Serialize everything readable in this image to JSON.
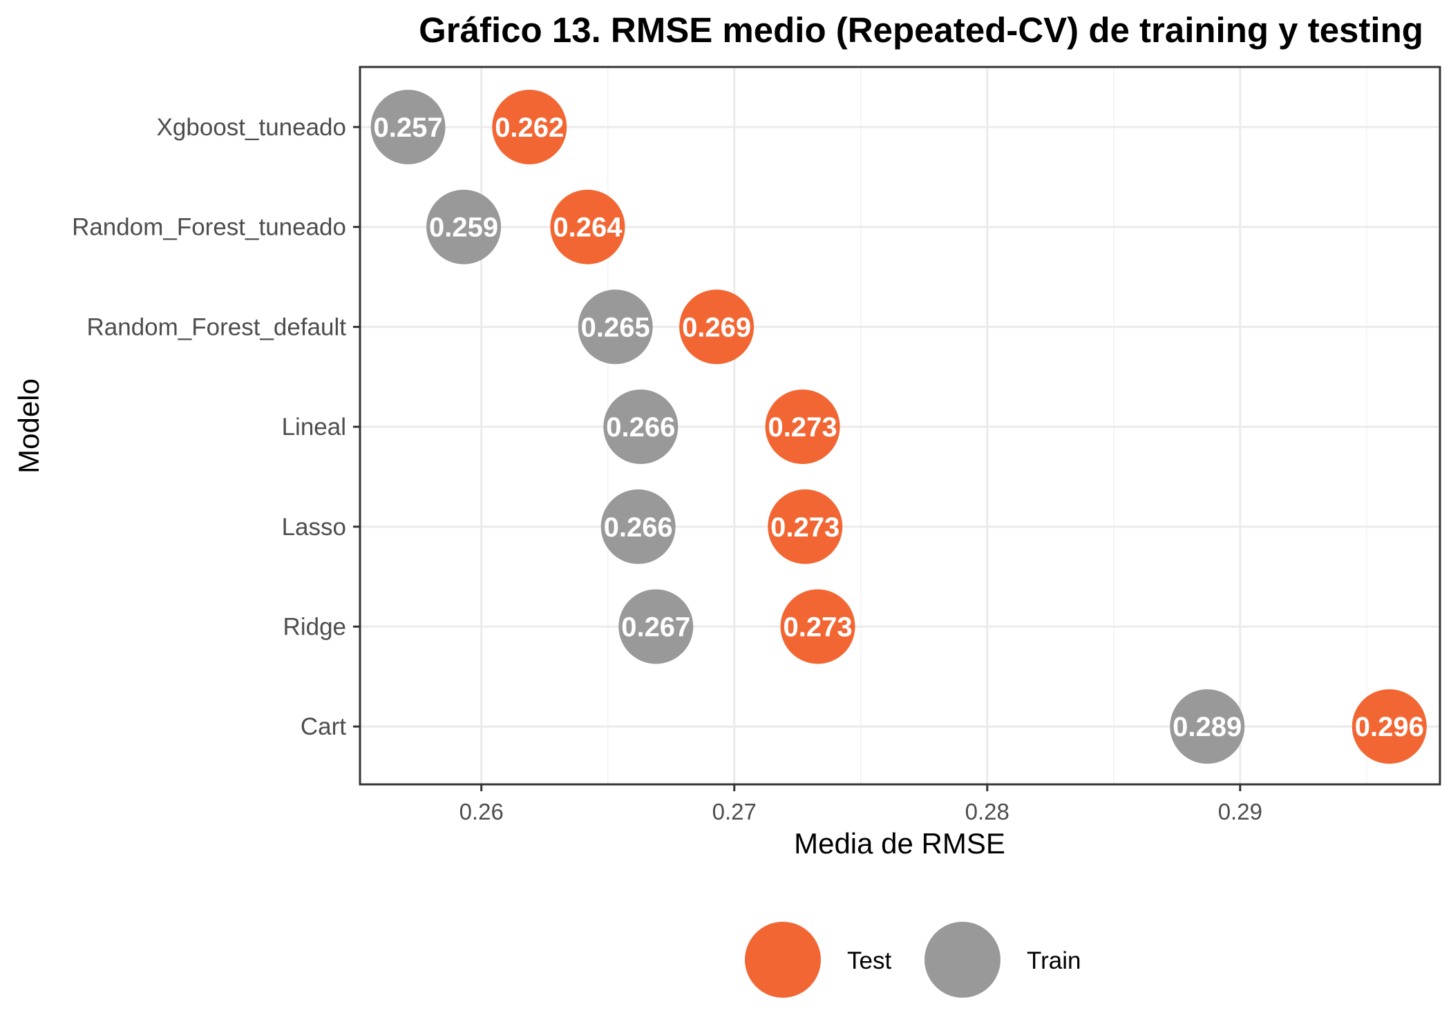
{
  "chart_data": {
    "type": "scatter",
    "title": "Gráfico 13. RMSE medio (Repeated-CV) de training y testing",
    "xlabel": "Media de RMSE",
    "ylabel": "Modelo",
    "xlim": [
      0.2552,
      0.2979
    ],
    "x_ticks": [
      0.26,
      0.27,
      0.28,
      0.29
    ],
    "x_tick_labels": [
      "0.26",
      "0.27",
      "0.28",
      "0.29"
    ],
    "categories": [
      "Xgboost_tuneado",
      "Random_Forest_tuneado",
      "Random_Forest_default",
      "Lineal",
      "Lasso",
      "Ridge",
      "Cart"
    ],
    "series": [
      {
        "name": "Test",
        "color": "#f26633",
        "values": [
          0.2619,
          0.2642,
          0.2693,
          0.2727,
          0.2728,
          0.2733,
          0.2959
        ],
        "labels": [
          "0.262",
          "0.264",
          "0.269",
          "0.273",
          "0.273",
          "0.273",
          "0.296"
        ]
      },
      {
        "name": "Train",
        "color": "#999999",
        "values": [
          0.2571,
          0.2593,
          0.2653,
          0.2663,
          0.2662,
          0.2669,
          0.2887
        ],
        "labels": [
          "0.257",
          "0.259",
          "0.265",
          "0.266",
          "0.266",
          "0.267",
          "0.289"
        ]
      }
    ],
    "grid": true,
    "legend_position": "bottom"
  }
}
